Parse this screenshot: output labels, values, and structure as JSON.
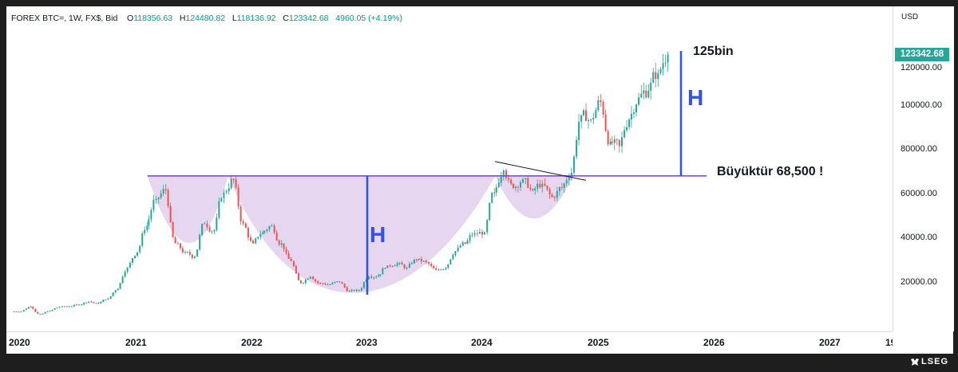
{
  "header": {
    "symbol": "FOREX BTC=, 1W, FX$, Bid",
    "open_label": "O",
    "open": "118356.63",
    "high_label": "H",
    "high": "124480.82",
    "low_label": "L",
    "low": "118136.92",
    "close_label": "C",
    "close": "123342.68",
    "change": "4960.05 (+4.19%)"
  },
  "price_axis": {
    "currency": "USD",
    "last_price": "123342.68",
    "ticks": [
      "120000.00",
      "100000.00",
      "80000.00",
      "60000.00",
      "40000.00",
      "20000.00"
    ]
  },
  "time_axis": {
    "ticks": [
      "2020",
      "2021",
      "2022",
      "2023",
      "2024",
      "2025",
      "2026",
      "2027",
      "19"
    ]
  },
  "annotations": {
    "target": "125bin",
    "measure_left": "H",
    "measure_right": "H",
    "neckline": "Büyüktür 68,500 !"
  },
  "footer": {
    "brand": "LSEG"
  },
  "colors": {
    "up": "#26a69a",
    "down": "#ef5350",
    "neckline": "#7b4fcf",
    "cup_fill": "#e3cfec",
    "measure": "#2f54eb",
    "last_price_bg": "#26a69a"
  },
  "chart_data": {
    "type": "candlestick",
    "xlabel": "",
    "ylabel": "",
    "x_range": [
      "2020-01-01",
      "2027-09-01"
    ],
    "ylim": [
      0,
      135000
    ],
    "neckline_level": 68500,
    "target_level": 125000,
    "series": [
      {
        "interval": "1W",
        "points": [
          {
            "date": "2020-01",
            "close": 7200
          },
          {
            "date": "2020-02",
            "close": 9400
          },
          {
            "date": "2020-03",
            "close": 5800
          },
          {
            "date": "2020-04",
            "close": 7500
          },
          {
            "date": "2020-05",
            "close": 9200
          },
          {
            "date": "2020-06",
            "close": 9500
          },
          {
            "date": "2020-07",
            "close": 10200
          },
          {
            "date": "2020-08",
            "close": 11700
          },
          {
            "date": "2020-09",
            "close": 10800
          },
          {
            "date": "2020-10",
            "close": 13000
          },
          {
            "date": "2020-11",
            "close": 17500
          },
          {
            "date": "2020-12",
            "close": 27000
          },
          {
            "date": "2021-01",
            "close": 34000
          },
          {
            "date": "2021-02",
            "close": 46000
          },
          {
            "date": "2021-03",
            "close": 58000
          },
          {
            "date": "2021-04",
            "close": 62000
          },
          {
            "date": "2021-05",
            "close": 38000
          },
          {
            "date": "2021-06",
            "close": 34000
          },
          {
            "date": "2021-07",
            "close": 32000
          },
          {
            "date": "2021-08",
            "close": 47000
          },
          {
            "date": "2021-09",
            "close": 44000
          },
          {
            "date": "2021-10",
            "close": 61000
          },
          {
            "date": "2021-11",
            "close": 67000
          },
          {
            "date": "2021-12",
            "close": 47000
          },
          {
            "date": "2022-01",
            "close": 38000
          },
          {
            "date": "2022-02",
            "close": 43000
          },
          {
            "date": "2022-03",
            "close": 46000
          },
          {
            "date": "2022-04",
            "close": 38000
          },
          {
            "date": "2022-05",
            "close": 30000
          },
          {
            "date": "2022-06",
            "close": 20000
          },
          {
            "date": "2022-07",
            "close": 23000
          },
          {
            "date": "2022-08",
            "close": 20000
          },
          {
            "date": "2022-09",
            "close": 19500
          },
          {
            "date": "2022-10",
            "close": 20500
          },
          {
            "date": "2022-11",
            "close": 16500
          },
          {
            "date": "2022-12",
            "close": 16600
          },
          {
            "date": "2023-01",
            "close": 23000
          },
          {
            "date": "2023-02",
            "close": 23500
          },
          {
            "date": "2023-03",
            "close": 28000
          },
          {
            "date": "2023-04",
            "close": 29000
          },
          {
            "date": "2023-05",
            "close": 27000
          },
          {
            "date": "2023-06",
            "close": 30500
          },
          {
            "date": "2023-07",
            "close": 29500
          },
          {
            "date": "2023-08",
            "close": 26000
          },
          {
            "date": "2023-09",
            "close": 27000
          },
          {
            "date": "2023-10",
            "close": 34500
          },
          {
            "date": "2023-11",
            "close": 37800
          },
          {
            "date": "2023-12",
            "close": 42500
          },
          {
            "date": "2024-01",
            "close": 43000
          },
          {
            "date": "2024-02",
            "close": 61000
          },
          {
            "date": "2024-03",
            "close": 71000
          },
          {
            "date": "2024-04",
            "close": 63000
          },
          {
            "date": "2024-05",
            "close": 67000
          },
          {
            "date": "2024-06",
            "close": 62000
          },
          {
            "date": "2024-07",
            "close": 65000
          },
          {
            "date": "2024-08",
            "close": 59000
          },
          {
            "date": "2024-09",
            "close": 63000
          },
          {
            "date": "2024-10",
            "close": 70000
          },
          {
            "date": "2024-11",
            "close": 96000
          },
          {
            "date": "2024-12",
            "close": 94000
          },
          {
            "date": "2025-01",
            "close": 102000
          },
          {
            "date": "2025-02",
            "close": 84000
          },
          {
            "date": "2025-03",
            "close": 82000
          },
          {
            "date": "2025-04",
            "close": 94000
          },
          {
            "date": "2025-05",
            "close": 104000
          },
          {
            "date": "2025-06",
            "close": 107000
          },
          {
            "date": "2025-07",
            "close": 115000
          },
          {
            "date": "2025-08",
            "close": 123342
          }
        ]
      }
    ]
  }
}
